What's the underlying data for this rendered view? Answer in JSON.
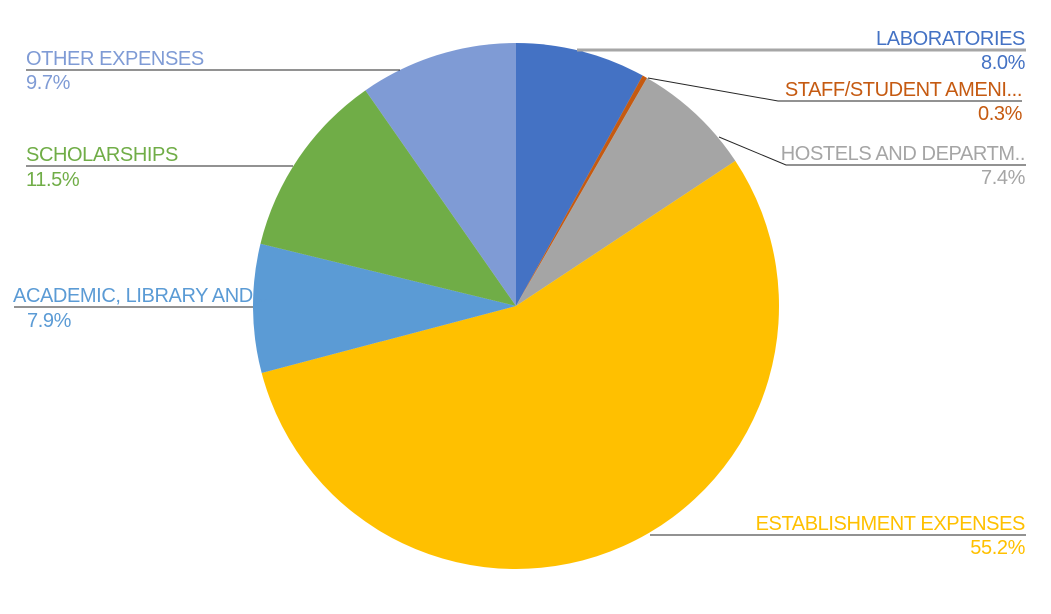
{
  "chart_data": {
    "type": "pie",
    "title": "",
    "legend_position": "none",
    "labels_as": "callouts-with-leader-lines",
    "direction": "clockwise",
    "start_angle_deg": 0,
    "background": "#FFFFFF",
    "leader_line_color": "#262626",
    "laboratories_leader_line_color": "#A6A6A6",
    "categories": [
      "LABORATORIES",
      "STAFF/STUDENT AMENI...",
      "HOSTELS AND DEPARTM..",
      "ESTABLISHMENT EXPENSES",
      "ACADEMIC, LIBRARY AND...",
      "SCHOLARSHIPS",
      "OTHER EXPENSES"
    ],
    "values": [
      8.0,
      0.3,
      7.4,
      55.2,
      7.9,
      11.5,
      9.7
    ],
    "value_labels": [
      "8.0%",
      "0.3%",
      "7.4%",
      "55.2%",
      "7.9%",
      "11.5%",
      "9.7%"
    ],
    "colors": [
      "#4472C4",
      "#C55A11",
      "#A5A5A5",
      "#FFC000",
      "#5B9BD5",
      "#70AD47",
      "#7F9BD5"
    ]
  }
}
